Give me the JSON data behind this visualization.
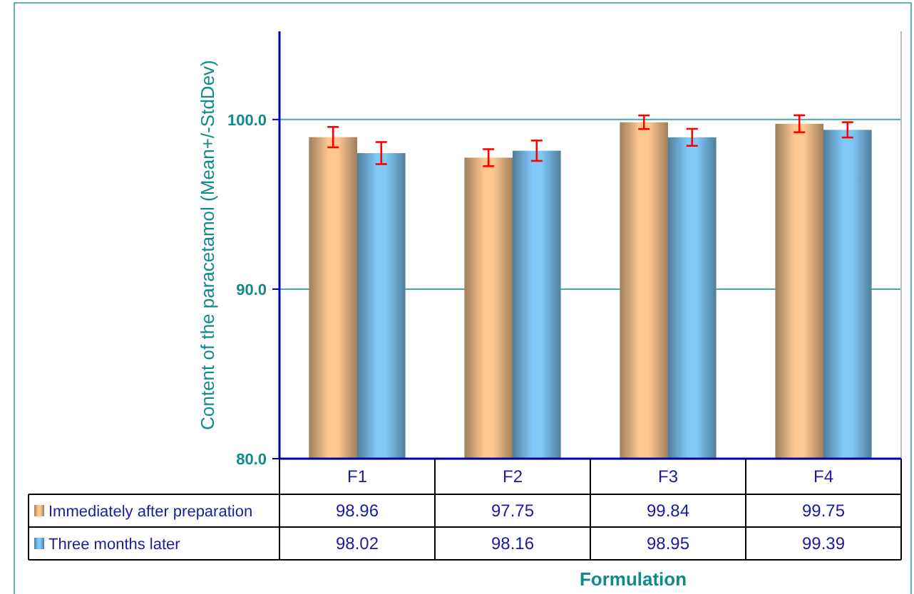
{
  "chart_data": {
    "type": "bar",
    "xlabel": "Formulation",
    "ylabel": "Content of the paracetamol (Mean+/-StdDev)",
    "categories": [
      "F1",
      "F2",
      "F3",
      "F4"
    ],
    "series": [
      {
        "name": "Immediately after preparation",
        "color": "#ffc890",
        "values": [
          98.96,
          97.75,
          99.84,
          99.75
        ],
        "errors": [
          0.6,
          0.5,
          0.4,
          0.5
        ]
      },
      {
        "name": "Three months later",
        "color": "#7fc8f8",
        "values": [
          98.02,
          98.16,
          98.95,
          99.39
        ],
        "errors": [
          0.65,
          0.6,
          0.5,
          0.45
        ]
      }
    ],
    "ylim": [
      80,
      105.2
    ],
    "yticks": [
      {
        "value": 80,
        "label": "80.0"
      },
      {
        "value": 90,
        "label": "90.0"
      },
      {
        "value": 100,
        "label": "100.0"
      }
    ],
    "grid": "y",
    "data_labels": true,
    "legend": "bottom"
  }
}
